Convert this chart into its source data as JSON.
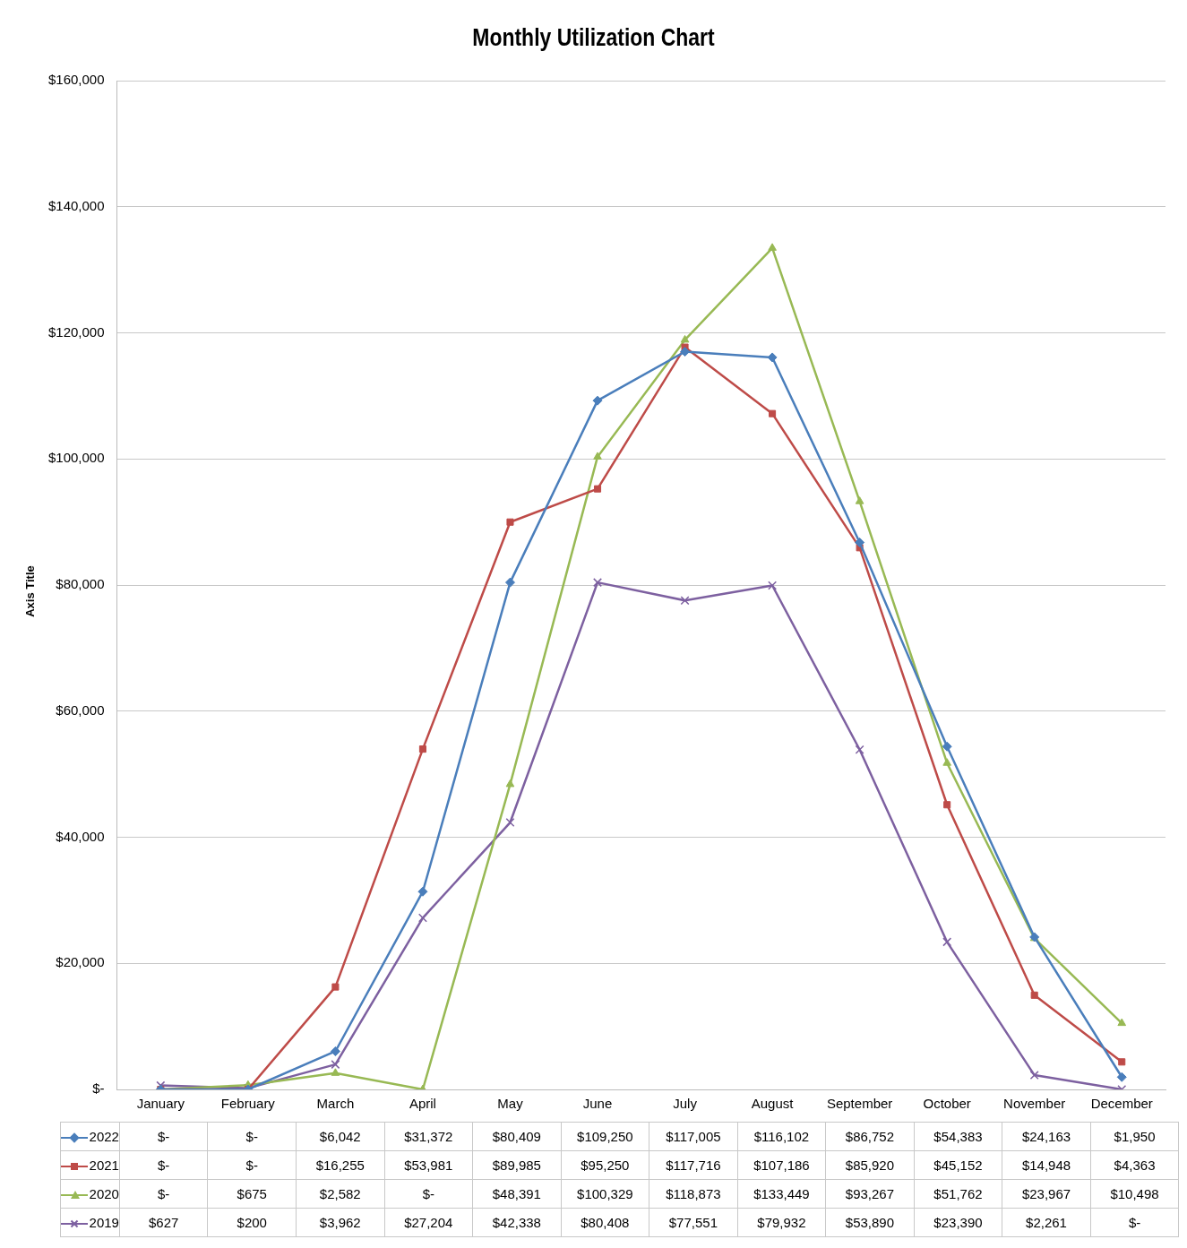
{
  "chart_data": {
    "type": "line",
    "title": "Monthly Utilization Chart",
    "ylabel": "Axis Title",
    "categories": [
      "January",
      "February",
      "March",
      "April",
      "May",
      "June",
      "July",
      "August",
      "September",
      "October",
      "November",
      "December"
    ],
    "ylim": [
      0,
      160000
    ],
    "yticks": [
      {
        "value": 0,
        "label": "$-"
      },
      {
        "value": 20000,
        "label": "$20,000"
      },
      {
        "value": 40000,
        "label": "$40,000"
      },
      {
        "value": 60000,
        "label": "$60,000"
      },
      {
        "value": 80000,
        "label": "$80,000"
      },
      {
        "value": 100000,
        "label": "$100,000"
      },
      {
        "value": 120000,
        "label": "$120,000"
      },
      {
        "value": 140000,
        "label": "$140,000"
      },
      {
        "value": 160000,
        "label": "$160,000"
      }
    ],
    "grid": "y",
    "legend": "bottom",
    "line_style": "solid",
    "series": [
      {
        "name": "2022",
        "color": "#4a7ebb",
        "marker": "diamond",
        "values": [
          0,
          0,
          6042,
          31372,
          80409,
          109250,
          117005,
          116102,
          86752,
          54383,
          24163,
          1950
        ],
        "value_labels": [
          "$-",
          "$-",
          "$6,042",
          "$31,372",
          "$80,409",
          "$109,250",
          "$117,005",
          "$116,102",
          "$86,752",
          "$54,383",
          "$24,163",
          "$1,950"
        ]
      },
      {
        "name": "2021",
        "color": "#be4b48",
        "marker": "square",
        "values": [
          0,
          0,
          16255,
          53981,
          89985,
          95250,
          117716,
          107186,
          85920,
          45152,
          14948,
          4363
        ],
        "value_labels": [
          "$-",
          "$-",
          "$16,255",
          "$53,981",
          "$89,985",
          "$95,250",
          "$117,716",
          "$107,186",
          "$85,920",
          "$45,152",
          "$14,948",
          "$4,363"
        ]
      },
      {
        "name": "2020",
        "color": "#98b954",
        "marker": "triangle",
        "values": [
          0,
          675,
          2582,
          0,
          48391,
          100329,
          118873,
          133449,
          93267,
          51762,
          23967,
          10498
        ],
        "value_labels": [
          "$-",
          "$675",
          "$2,582",
          "$-",
          "$48,391",
          "$100,329",
          "$118,873",
          "$133,449",
          "$93,267",
          "$51,762",
          "$23,967",
          "$10,498"
        ]
      },
      {
        "name": "2019",
        "color": "#7d60a0",
        "marker": "cross",
        "values": [
          627,
          200,
          3962,
          27204,
          42338,
          80408,
          77551,
          79932,
          53890,
          23390,
          2261,
          0
        ],
        "value_labels": [
          "$627",
          "$200",
          "$3,962",
          "$27,204",
          "$42,338",
          "$80,408",
          "$77,551",
          "$79,932",
          "$53,890",
          "$23,390",
          "$2,261",
          "$-"
        ]
      }
    ]
  }
}
